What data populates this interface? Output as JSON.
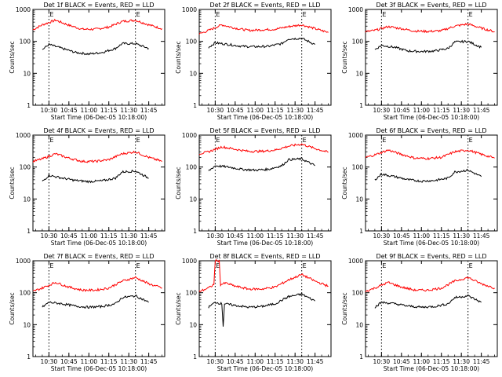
{
  "chart_data": [
    {
      "type": "line",
      "title": "Det 1f BLACK = Events, RED = LLD",
      "xlabel": "Start Time (06-Dec-05 10:18:00)",
      "ylabel": "Counts/sec",
      "x_tick_labels": [
        "10:30",
        "10:45",
        "11:00",
        "11:15",
        "11:30",
        "11:45"
      ],
      "y_tick_labels": [
        "1",
        "10",
        "100",
        "1000"
      ],
      "y_scale": "log",
      "ylim": [
        1,
        1000
      ],
      "marker_label": "E",
      "vlines": [
        "10:30",
        "11:35"
      ],
      "series": [
        {
          "color": "#ff0000",
          "x": [
            "10:18",
            "10:25",
            "10:35",
            "10:45",
            "10:55",
            "11:05",
            "11:15",
            "11:25",
            "11:35",
            "11:45",
            "11:55"
          ],
          "values": [
            230,
            330,
            460,
            320,
            240,
            240,
            280,
            420,
            460,
            330,
            250
          ]
        },
        {
          "color": "#000000",
          "x": [
            "10:25",
            "10:30",
            "10:40",
            "10:50",
            "11:00",
            "11:10",
            "11:20",
            "11:25",
            "11:35",
            "11:45"
          ],
          "values": [
            55,
            80,
            60,
            45,
            40,
            45,
            60,
            85,
            85,
            60
          ]
        }
      ]
    },
    {
      "type": "line",
      "title": "Det 2f BLACK = Events, RED = LLD",
      "xlabel": "Start Time (06-Dec-05 10:18:00)",
      "ylabel": "Counts/sec",
      "x_tick_labels": [
        "10:30",
        "10:45",
        "11:00",
        "11:15",
        "11:30",
        "11:45"
      ],
      "y_tick_labels": [
        "1",
        "10",
        "100",
        "1000"
      ],
      "y_scale": "log",
      "ylim": [
        1,
        1000
      ],
      "marker_label": "E",
      "vlines": [
        "10:30",
        "11:35"
      ],
      "series": [
        {
          "color": "#ff0000",
          "x": [
            "10:18",
            "10:25",
            "10:35",
            "10:45",
            "10:55",
            "11:05",
            "11:15",
            "11:25",
            "11:35",
            "11:45",
            "11:55"
          ],
          "values": [
            170,
            220,
            330,
            260,
            220,
            230,
            240,
            290,
            330,
            250,
            190
          ]
        },
        {
          "color": "#000000",
          "x": [
            "10:25",
            "10:30",
            "10:40",
            "10:50",
            "11:00",
            "11:10",
            "11:20",
            "11:25",
            "11:35",
            "11:45"
          ],
          "values": [
            65,
            90,
            80,
            70,
            68,
            70,
            85,
            120,
            125,
            80
          ]
        }
      ]
    },
    {
      "type": "line",
      "title": "Det 3f BLACK = Events, RED = LLD",
      "xlabel": "Start Time (06-Dec-05 10:18:00)",
      "ylabel": "Counts/sec",
      "x_tick_labels": [
        "10:30",
        "10:45",
        "11:00",
        "11:15",
        "11:30",
        "11:45"
      ],
      "y_tick_labels": [
        "1",
        "10",
        "100",
        "1000"
      ],
      "y_scale": "log",
      "ylim": [
        1,
        1000
      ],
      "marker_label": "E",
      "vlines": [
        "10:30",
        "11:35"
      ],
      "series": [
        {
          "color": "#ff0000",
          "x": [
            "10:18",
            "10:25",
            "10:35",
            "10:45",
            "10:55",
            "11:05",
            "11:15",
            "11:25",
            "11:35",
            "11:45",
            "11:55"
          ],
          "values": [
            200,
            220,
            290,
            250,
            210,
            205,
            215,
            300,
            350,
            260,
            200
          ]
        },
        {
          "color": "#000000",
          "x": [
            "10:25",
            "10:30",
            "10:40",
            "10:50",
            "11:00",
            "11:10",
            "11:20",
            "11:25",
            "11:35",
            "11:45"
          ],
          "values": [
            55,
            75,
            65,
            50,
            48,
            50,
            60,
            95,
            100,
            65
          ]
        }
      ]
    },
    {
      "type": "line",
      "title": "Det 4f BLACK = Events, RED = LLD",
      "xlabel": "Start Time (06-Dec-05 10:18:00)",
      "ylabel": "Counts/sec",
      "x_tick_labels": [
        "10:30",
        "10:45",
        "11:00",
        "11:15",
        "11:30",
        "11:45"
      ],
      "y_tick_labels": [
        "1",
        "10",
        "100",
        "1000"
      ],
      "y_scale": "log",
      "ylim": [
        1,
        1000
      ],
      "marker_label": "E",
      "vlines": [
        "10:30",
        "11:35"
      ],
      "series": [
        {
          "color": "#ff0000",
          "x": [
            "10:18",
            "10:25",
            "10:35",
            "10:45",
            "10:55",
            "11:05",
            "11:15",
            "11:25",
            "11:35",
            "11:45",
            "11:55"
          ],
          "values": [
            150,
            180,
            260,
            190,
            150,
            150,
            170,
            260,
            300,
            200,
            150
          ]
        },
        {
          "color": "#000000",
          "x": [
            "10:25",
            "10:30",
            "10:40",
            "10:50",
            "11:00",
            "11:10",
            "11:20",
            "11:25",
            "11:35",
            "11:45"
          ],
          "values": [
            35,
            55,
            45,
            38,
            35,
            37,
            45,
            70,
            75,
            45
          ]
        }
      ]
    },
    {
      "type": "line",
      "title": "Det 5f BLACK = Events, RED = LLD",
      "xlabel": "Start Time (06-Dec-05 10:18:00)",
      "ylabel": "Counts/sec",
      "x_tick_labels": [
        "10:30",
        "10:45",
        "11:00",
        "11:15",
        "11:30",
        "11:45"
      ],
      "y_tick_labels": [
        "1",
        "10",
        "100",
        "1000"
      ],
      "y_scale": "log",
      "ylim": [
        1,
        1000
      ],
      "marker_label": "E",
      "vlines": [
        "10:30",
        "11:35"
      ],
      "series": [
        {
          "color": "#ff0000",
          "x": [
            "10:18",
            "10:25",
            "10:35",
            "10:45",
            "10:55",
            "11:05",
            "11:15",
            "11:25",
            "11:35",
            "11:45",
            "11:55"
          ],
          "values": [
            260,
            300,
            430,
            360,
            310,
            310,
            340,
            450,
            520,
            380,
            290
          ]
        },
        {
          "color": "#000000",
          "x": [
            "10:25",
            "10:30",
            "10:40",
            "10:50",
            "11:00",
            "11:10",
            "11:20",
            "11:25",
            "11:35",
            "11:45"
          ],
          "values": [
            75,
            110,
            100,
            85,
            80,
            85,
            110,
            170,
            180,
            110
          ]
        }
      ]
    },
    {
      "type": "line",
      "title": "Det 6f BLACK = Events, RED = LLD",
      "xlabel": "Start Time (06-Dec-05 10:18:00)",
      "ylabel": "Counts/sec",
      "x_tick_labels": [
        "10:30",
        "10:45",
        "11:00",
        "11:15",
        "11:30",
        "11:45"
      ],
      "y_tick_labels": [
        "1",
        "10",
        "100",
        "1000"
      ],
      "y_scale": "log",
      "ylim": [
        1,
        1000
      ],
      "marker_label": "E",
      "vlines": [
        "10:30",
        "11:35"
      ],
      "series": [
        {
          "color": "#ff0000",
          "x": [
            "10:18",
            "10:25",
            "10:35",
            "10:45",
            "10:55",
            "11:05",
            "11:15",
            "11:25",
            "11:35",
            "11:45",
            "11:55"
          ],
          "values": [
            200,
            240,
            340,
            250,
            190,
            185,
            200,
            300,
            340,
            250,
            190
          ]
        },
        {
          "color": "#000000",
          "x": [
            "10:25",
            "10:30",
            "10:40",
            "10:50",
            "11:00",
            "11:10",
            "11:20",
            "11:25",
            "11:35",
            "11:45"
          ],
          "values": [
            40,
            60,
            50,
            40,
            36,
            38,
            45,
            70,
            80,
            50
          ]
        }
      ]
    },
    {
      "type": "line",
      "title": "Det 7f BLACK = Events, RED = LLD",
      "xlabel": "Start Time (06-Dec-05 10:18:00)",
      "ylabel": "Counts/sec",
      "x_tick_labels": [
        "10:30",
        "10:45",
        "11:00",
        "11:15",
        "11:30",
        "11:45"
      ],
      "y_tick_labels": [
        "1",
        "10",
        "100",
        "1000"
      ],
      "y_scale": "log",
      "ylim": [
        1,
        1000
      ],
      "marker_label": "E",
      "vlines": [
        "10:30",
        "11:35"
      ],
      "series": [
        {
          "color": "#ff0000",
          "x": [
            "10:18",
            "10:25",
            "10:35",
            "10:45",
            "10:55",
            "11:05",
            "11:15",
            "11:25",
            "11:35",
            "11:45",
            "11:55"
          ],
          "values": [
            110,
            140,
            210,
            150,
            120,
            120,
            140,
            230,
            300,
            190,
            140
          ]
        },
        {
          "color": "#000000",
          "x": [
            "10:25",
            "10:30",
            "10:40",
            "10:50",
            "11:00",
            "11:10",
            "11:20",
            "11:25",
            "11:35",
            "11:45"
          ],
          "values": [
            35,
            50,
            45,
            38,
            35,
            37,
            45,
            70,
            80,
            50
          ]
        }
      ]
    },
    {
      "type": "line",
      "title": "Det 8f BLACK = Events, RED = LLD",
      "xlabel": "Start Time (06-Dec-05 10:18:00)",
      "ylabel": "Counts/sec",
      "x_tick_labels": [
        "10:30",
        "10:45",
        "11:00",
        "11:15",
        "11:30",
        "11:45"
      ],
      "y_tick_labels": [
        "1",
        "10",
        "100",
        "1000"
      ],
      "y_scale": "log",
      "ylim": [
        1,
        1000
      ],
      "marker_label": "E",
      "vlines": [
        "10:30",
        "11:35"
      ],
      "series": [
        {
          "color": "#ff0000",
          "x": [
            "10:18",
            "10:25",
            "10:29",
            "10:30",
            "10:33",
            "10:34",
            "10:38",
            "10:45",
            "10:55",
            "11:05",
            "11:15",
            "11:25",
            "11:35",
            "11:45",
            "11:55"
          ],
          "values": [
            110,
            140,
            180,
            1000,
            1000,
            180,
            200,
            160,
            130,
            130,
            150,
            250,
            370,
            230,
            160
          ]
        },
        {
          "color": "#000000",
          "x": [
            "10:25",
            "10:30",
            "10:35",
            "10:36",
            "10:37",
            "10:45",
            "10:55",
            "11:05",
            "11:15",
            "11:25",
            "11:35",
            "11:45"
          ],
          "values": [
            35,
            50,
            45,
            9,
            45,
            40,
            35,
            37,
            45,
            75,
            90,
            55
          ]
        }
      ]
    },
    {
      "type": "line",
      "title": "Det 9f BLACK = Events, RED = LLD",
      "xlabel": "Start Time (06-Dec-05 10:18:00)",
      "ylabel": "Counts/sec",
      "x_tick_labels": [
        "10:30",
        "10:45",
        "11:00",
        "11:15",
        "11:30",
        "11:45"
      ],
      "y_tick_labels": [
        "1",
        "10",
        "100",
        "1000"
      ],
      "y_scale": "log",
      "ylim": [
        1,
        1000
      ],
      "marker_label": "E",
      "vlines": [
        "10:30",
        "11:35"
      ],
      "series": [
        {
          "color": "#ff0000",
          "x": [
            "10:18",
            "10:25",
            "10:35",
            "10:45",
            "10:55",
            "11:05",
            "11:15",
            "11:25",
            "11:35",
            "11:45",
            "11:55"
          ],
          "values": [
            110,
            140,
            210,
            150,
            120,
            120,
            140,
            230,
            300,
            190,
            140
          ]
        },
        {
          "color": "#000000",
          "x": [
            "10:25",
            "10:30",
            "10:40",
            "10:50",
            "11:00",
            "11:10",
            "11:20",
            "11:25",
            "11:35",
            "11:45"
          ],
          "values": [
            35,
            50,
            45,
            38,
            35,
            37,
            45,
            70,
            80,
            50
          ]
        }
      ]
    }
  ]
}
